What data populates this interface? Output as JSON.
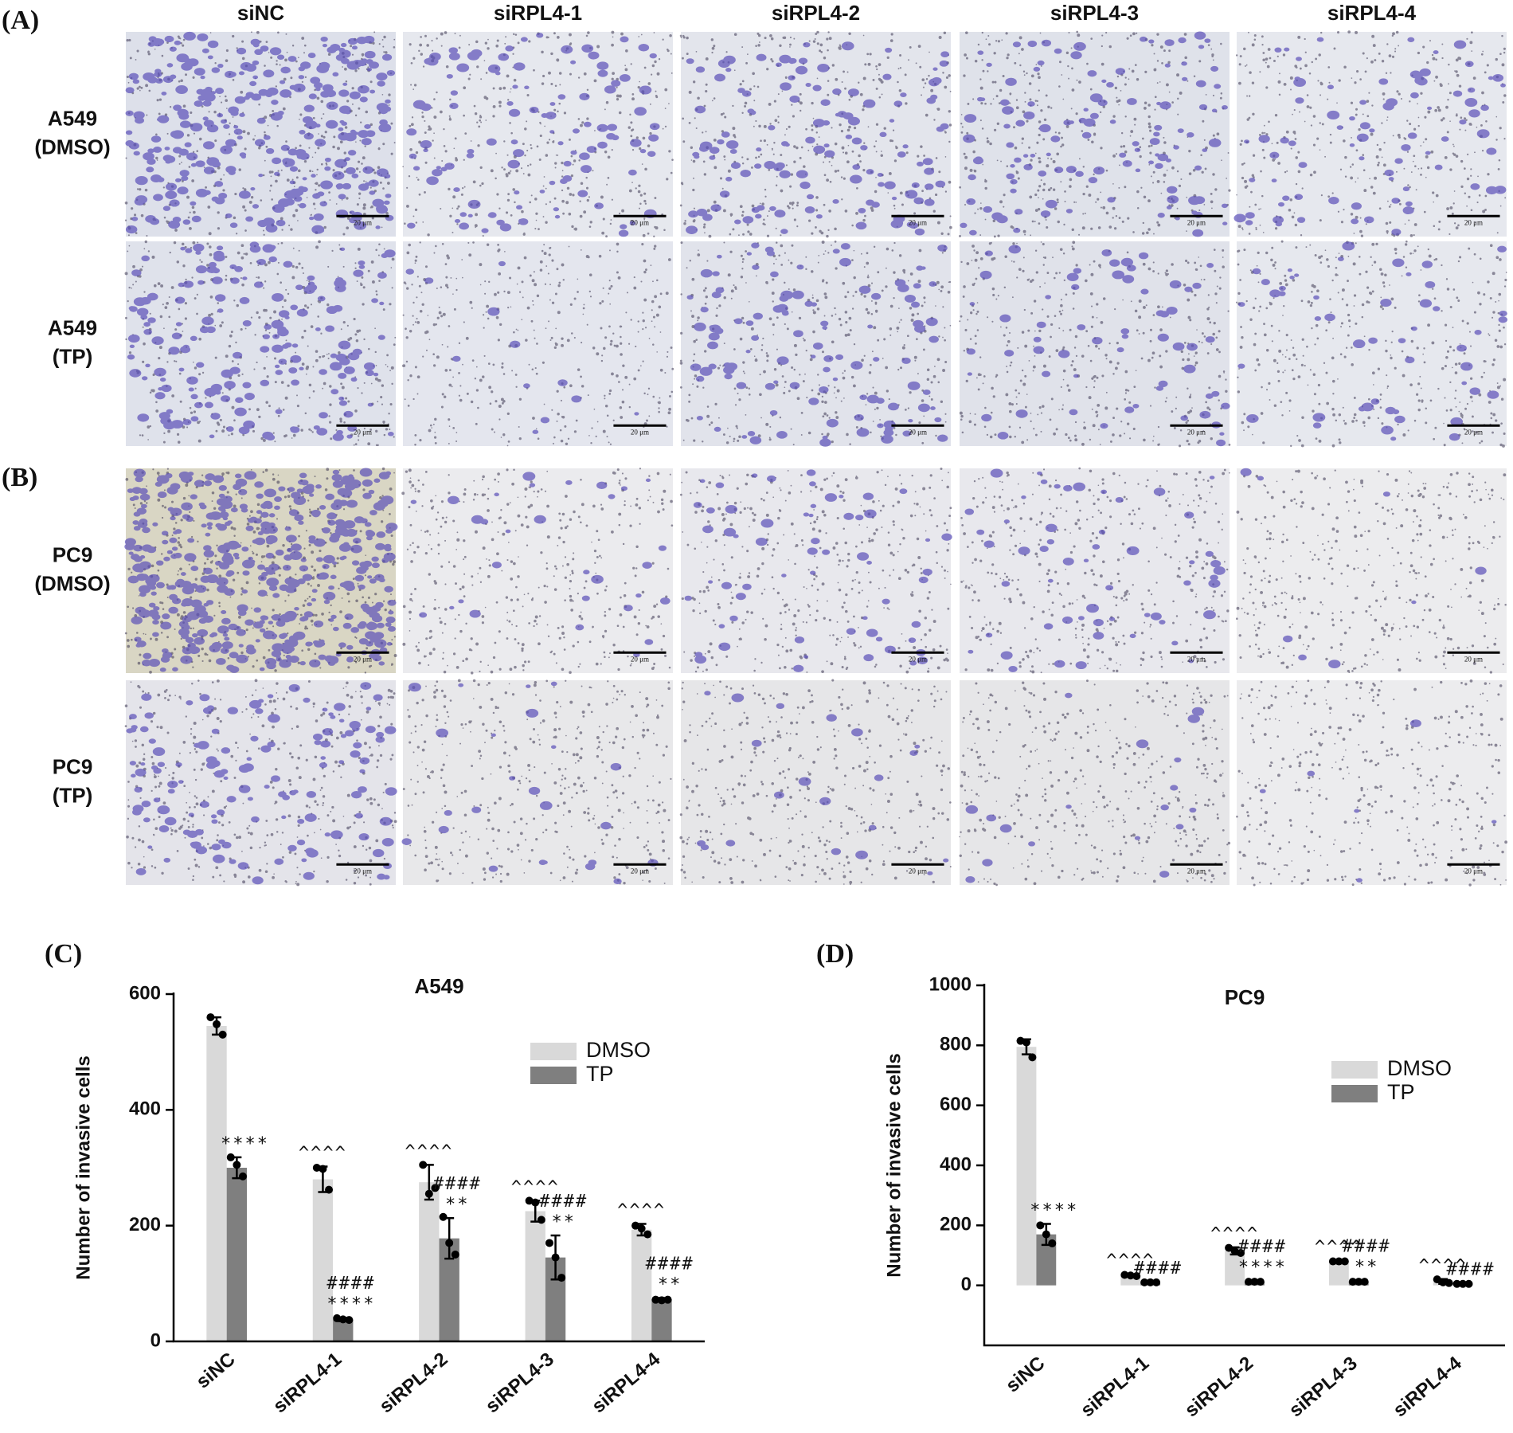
{
  "panel_labels": [
    "(A)",
    "(B)",
    "(C)",
    "(D)"
  ],
  "images": {
    "columns": [
      "siNC",
      "siRPL4-1",
      "siRPL4-2",
      "siRPL4-3",
      "siRPL4-4"
    ],
    "rows": [
      [
        "A549",
        "(DMSO)"
      ],
      [
        "A549",
        "(TP)"
      ],
      [
        "PC9",
        "(DMSO)"
      ],
      [
        "PC9",
        "(TP)"
      ]
    ],
    "scale_bar_label": "20 μm"
  },
  "chart_data": [
    {
      "type": "bar",
      "title": "A549",
      "y_label": "Number of invasive cells",
      "categories": [
        "siNC",
        "siRPL4-1",
        "siRPL4-2",
        "siRPL4-3",
        "siRPL4-4"
      ],
      "ylim": [
        0,
        600
      ],
      "yticks": [
        0,
        200,
        400,
        600
      ],
      "legend": "upper right",
      "series": [
        {
          "name": "DMSO",
          "color": "#d9d9d9",
          "values": [
            545,
            280,
            275,
            225,
            193
          ],
          "errors": [
            15,
            22,
            30,
            18,
            10
          ],
          "points": [
            [
              560,
              548,
              530
            ],
            [
              300,
              298,
              262
            ],
            [
              305,
              255,
              265
            ],
            [
              243,
              240,
              210
            ],
            [
              200,
              195,
              185
            ]
          ],
          "annotations": [
            null,
            [
              "^^^^"
            ],
            [
              "^^^^"
            ],
            [
              "^^^^"
            ],
            [
              "^^^^"
            ]
          ]
        },
        {
          "name": "TP",
          "color": "#7f7f7f",
          "values": [
            300,
            38,
            178,
            145,
            72
          ],
          "errors": [
            18,
            3,
            35,
            38,
            3
          ],
          "points": [
            [
              318,
              305,
              285
            ],
            [
              40,
              38,
              37
            ],
            [
              215,
              170,
              150
            ],
            [
              170,
              145,
              110
            ],
            [
              72,
              71,
              72
            ]
          ],
          "annotations": [
            [
              "****"
            ],
            [
              "####",
              "****"
            ],
            [
              "####",
              "**"
            ],
            [
              "####",
              "**"
            ],
            [
              "####",
              "**"
            ]
          ]
        }
      ]
    },
    {
      "type": "bar",
      "title": "PC9",
      "y_label": "Number of invasive cells",
      "categories": [
        "siNC",
        "siRPL4-1",
        "siRPL4-2",
        "siRPL4-3",
        "siRPL4-4"
      ],
      "ylim": [
        -200,
        1000
      ],
      "yticks": [
        0,
        200,
        400,
        600,
        800,
        1000
      ],
      "legend": "upper right",
      "series": [
        {
          "name": "DMSO",
          "color": "#d9d9d9",
          "values": [
            795,
            33,
            115,
            80,
            13
          ],
          "errors": [
            25,
            4,
            12,
            3,
            8
          ],
          "points": [
            [
              815,
              810,
              760
            ],
            [
              35,
              33,
              31
            ],
            [
              125,
              115,
              108
            ],
            [
              80,
              80,
              80
            ],
            [
              20,
              10,
              8
            ]
          ],
          "annotations": [
            null,
            [
              "^^^^"
            ],
            [
              "^^^^"
            ],
            [
              "^^^^"
            ],
            [
              "^^^^"
            ]
          ]
        },
        {
          "name": "TP",
          "color": "#7f7f7f",
          "values": [
            170,
            10,
            12,
            12,
            5
          ],
          "errors": [
            35,
            2,
            3,
            4,
            3
          ],
          "points": [
            [
              200,
              170,
              140
            ],
            [
              10,
              10,
              10
            ],
            [
              12,
              12,
              12
            ],
            [
              12,
              12,
              12
            ],
            [
              5,
              5,
              5
            ]
          ],
          "annotations": [
            [
              "****"
            ],
            [
              "####"
            ],
            [
              "####",
              "****"
            ],
            [
              "####",
              "**"
            ],
            [
              "####"
            ]
          ]
        }
      ]
    }
  ]
}
